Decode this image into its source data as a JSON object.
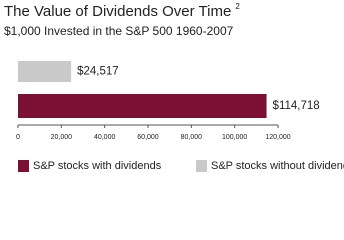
{
  "chart_data": {
    "type": "hbar",
    "title": "The Value of Dividends Over Time",
    "title_footnote": "2",
    "subtitle": "$1,000 Invested in the S&P 500 1960-2007",
    "series": [
      {
        "name": "S&P stocks with dividends",
        "color": "#7b0f34",
        "values": [
          114718
        ],
        "value_labels": [
          "$114,718"
        ]
      },
      {
        "name": "S&P stocks without dividends",
        "color": "#c9c9c9",
        "values": [
          24517
        ],
        "value_labels": [
          "$24,517"
        ]
      }
    ],
    "xlim": [
      0,
      120000
    ],
    "xticks": [
      0,
      {
        "value": 20000,
        "label": "20,000"
      },
      {
        "value": 40000,
        "label": "40,000"
      },
      {
        "value": 60000,
        "label": "60,000"
      },
      {
        "value": 80000,
        "label": "80,000"
      },
      {
        "value": 100000,
        "label": "100,000"
      },
      {
        "value": 120000,
        "label": "120,000"
      }
    ],
    "legend": "bottom"
  }
}
